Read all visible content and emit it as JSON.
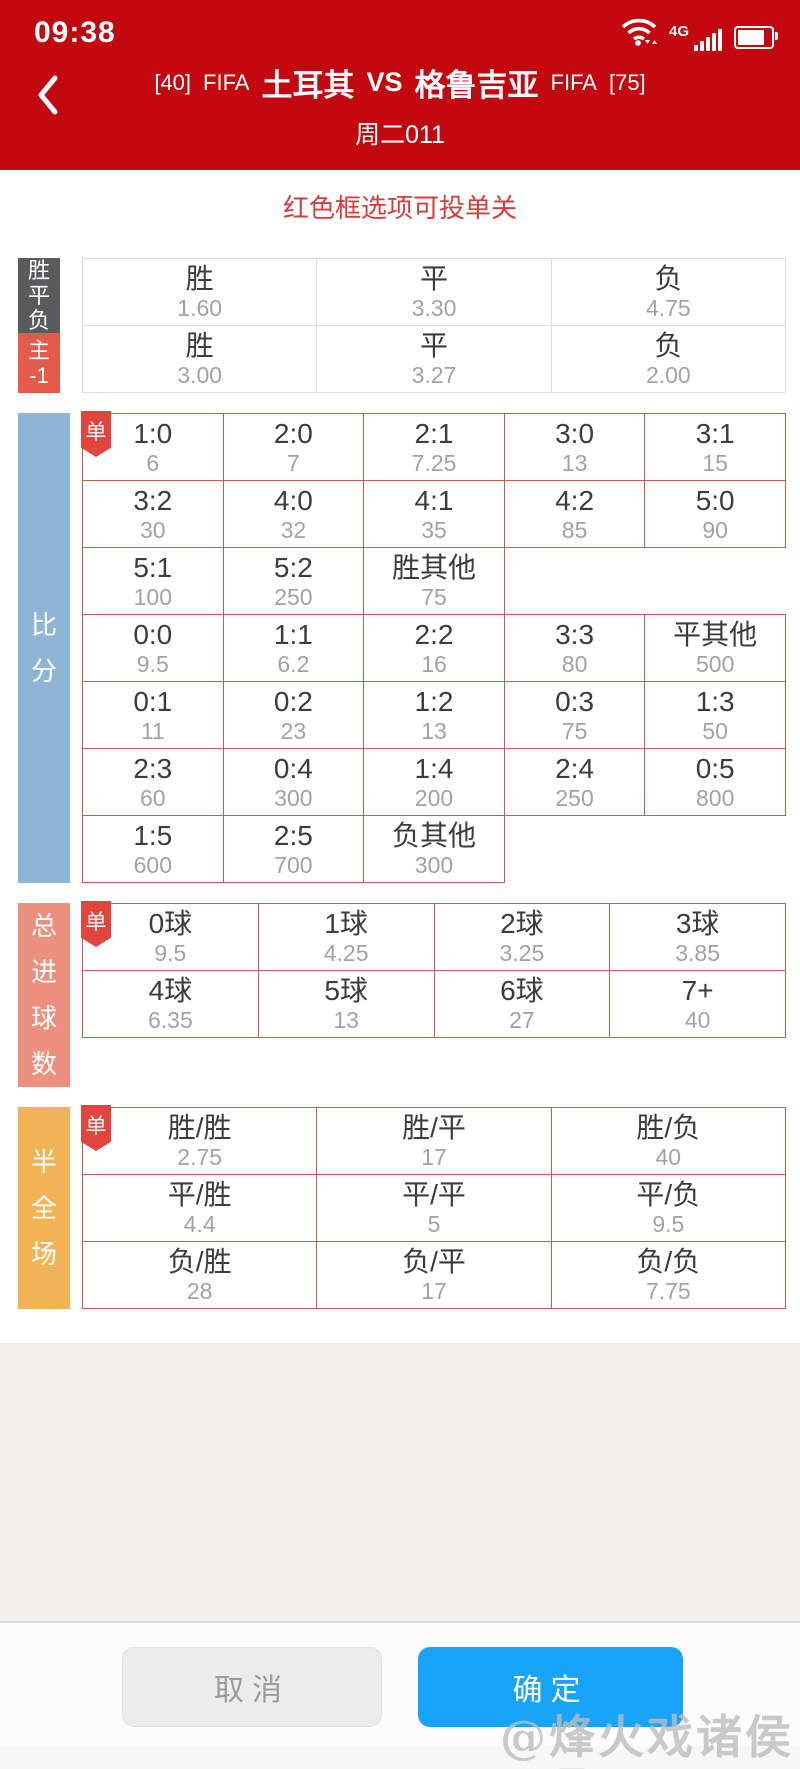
{
  "status_bar": {
    "time": "09:38",
    "network_label": "4G"
  },
  "header": {
    "home_rank": "[40]",
    "home_league": "FIFA",
    "home_team": "土耳其",
    "versus": "VS",
    "away_team": "格鲁吉亚",
    "away_league": "FIFA",
    "away_rank": "[75]",
    "match_code": "周二011"
  },
  "notice": "红色框选项可投单关",
  "panels": {
    "wdl": {
      "name_id": "panel-win-draw-lose",
      "columns": 3,
      "rows_with_labels": true,
      "rows": [
        {
          "label": "胜\n平\n负",
          "label_bg": "#5b5b5d",
          "options": [
            {
              "name": "胜",
              "odds": "1.60"
            },
            {
              "name": "平",
              "odds": "3.30"
            },
            {
              "name": "负",
              "odds": "4.75"
            }
          ]
        },
        {
          "label": "主\n-1",
          "label_bg": "#e45a4b",
          "options": [
            {
              "name": "胜",
              "odds": "3.00"
            },
            {
              "name": "平",
              "odds": "3.27"
            },
            {
              "name": "负",
              "odds": "2.00"
            }
          ]
        }
      ]
    },
    "score": {
      "name_id": "panel-correct-score",
      "label": "比\n分",
      "label_bg": "#8fb5d5",
      "badge": "单",
      "columns": 5,
      "rows": [
        [
          {
            "name": "1:0",
            "odds": "6"
          },
          {
            "name": "2:0",
            "odds": "7"
          },
          {
            "name": "2:1",
            "odds": "7.25"
          },
          {
            "name": "3:0",
            "odds": "13"
          },
          {
            "name": "3:1",
            "odds": "15"
          }
        ],
        [
          {
            "name": "3:2",
            "odds": "30"
          },
          {
            "name": "4:0",
            "odds": "32"
          },
          {
            "name": "4:1",
            "odds": "35"
          },
          {
            "name": "4:2",
            "odds": "85"
          },
          {
            "name": "5:0",
            "odds": "90"
          }
        ],
        [
          {
            "name": "5:1",
            "odds": "100"
          },
          {
            "name": "5:2",
            "odds": "250"
          },
          {
            "name": "胜其他",
            "odds": "75"
          }
        ],
        [
          {
            "name": "0:0",
            "odds": "9.5"
          },
          {
            "name": "1:1",
            "odds": "6.2"
          },
          {
            "name": "2:2",
            "odds": "16"
          },
          {
            "name": "3:3",
            "odds": "80"
          },
          {
            "name": "平其他",
            "odds": "500"
          }
        ],
        [
          {
            "name": "0:1",
            "odds": "11"
          },
          {
            "name": "0:2",
            "odds": "23"
          },
          {
            "name": "1:2",
            "odds": "13"
          },
          {
            "name": "0:3",
            "odds": "75"
          },
          {
            "name": "1:3",
            "odds": "50"
          }
        ],
        [
          {
            "name": "2:3",
            "odds": "60"
          },
          {
            "name": "0:4",
            "odds": "300"
          },
          {
            "name": "1:4",
            "odds": "200"
          },
          {
            "name": "2:4",
            "odds": "250"
          },
          {
            "name": "0:5",
            "odds": "800"
          }
        ],
        [
          {
            "name": "1:5",
            "odds": "600"
          },
          {
            "name": "2:5",
            "odds": "700"
          },
          {
            "name": "负其他",
            "odds": "300"
          }
        ]
      ]
    },
    "goals": {
      "name_id": "panel-total-goals",
      "label": "总\n进\n球\n数",
      "label_bg": "#ed8f7f",
      "badge": "单",
      "columns": 4,
      "rows": [
        [
          {
            "name": "0球",
            "odds": "9.5"
          },
          {
            "name": "1球",
            "odds": "4.25"
          },
          {
            "name": "2球",
            "odds": "3.25"
          },
          {
            "name": "3球",
            "odds": "3.85"
          }
        ],
        [
          {
            "name": "4球",
            "odds": "6.35"
          },
          {
            "name": "5球",
            "odds": "13"
          },
          {
            "name": "6球",
            "odds": "27"
          },
          {
            "name": "7+",
            "odds": "40"
          }
        ]
      ]
    },
    "htft": {
      "name_id": "panel-half-full-time",
      "label": "半\n全\n场",
      "label_bg": "#f2b357",
      "badge": "单",
      "columns": 3,
      "rows": [
        [
          {
            "name": "胜/胜",
            "odds": "2.75"
          },
          {
            "name": "胜/平",
            "odds": "17"
          },
          {
            "name": "胜/负",
            "odds": "40"
          }
        ],
        [
          {
            "name": "平/胜",
            "odds": "4.4"
          },
          {
            "name": "平/平",
            "odds": "5"
          },
          {
            "name": "平/负",
            "odds": "9.5"
          }
        ],
        [
          {
            "name": "负/胜",
            "odds": "28"
          },
          {
            "name": "负/平",
            "odds": "17"
          },
          {
            "name": "负/负",
            "odds": "7.75"
          }
        ]
      ]
    }
  },
  "footer": {
    "cancel_label": "取消",
    "confirm_label": "确定"
  },
  "watermark": "@烽火戏诸侯",
  "colors": {
    "header_red": "#c40810",
    "border_red": "#c75b4d",
    "badge_red": "#e1453e",
    "notice_red": "#d93a3a",
    "accent_blue": "#16a3f8",
    "label_gray": "#5b5b5d",
    "label_red": "#e45a4b",
    "label_blue": "#8fb5d5",
    "label_salmon": "#ed8f7f",
    "label_orange": "#f2b357"
  }
}
